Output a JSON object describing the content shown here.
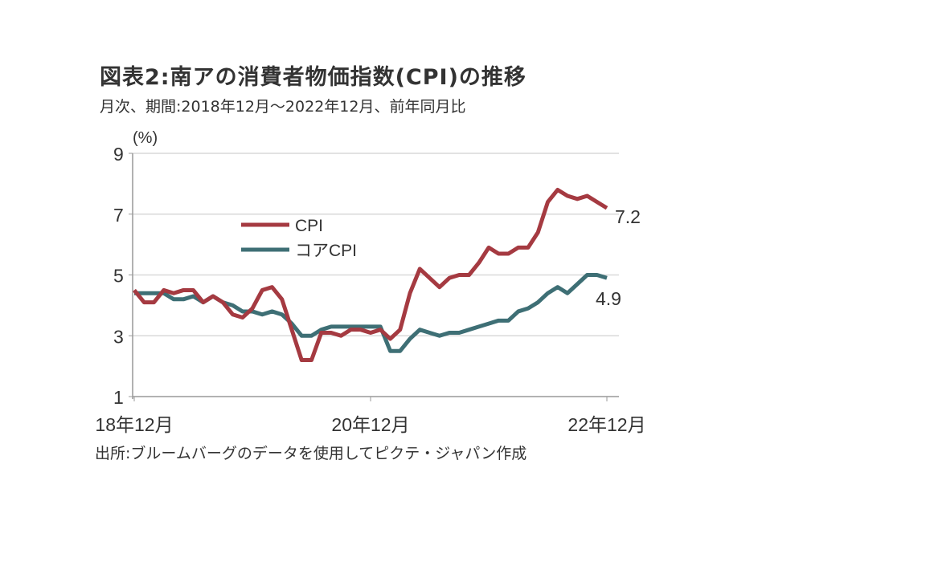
{
  "title": "図表2:南アの消費者物価指数(CPI)の推移",
  "subtitle": "月次、期間:2018年12月～2022年12月、前年同月比",
  "source": "出所:ブルームバーグのデータを使用してピクテ・ジャパン作成",
  "chart_data": {
    "type": "line",
    "ylabel": "(%)",
    "ylim": [
      1,
      9
    ],
    "yticks": [
      "1",
      "3",
      "5",
      "7",
      "9"
    ],
    "xticks": [
      "18年12月",
      "20年12月",
      "22年12月"
    ],
    "x_range": [
      "2018-12",
      "2022-12"
    ],
    "grid": true,
    "legend": "center-left",
    "series": [
      {
        "name": "CPI",
        "color": "#a53a41",
        "end_label": "7.2",
        "values": [
          4.5,
          4.1,
          4.1,
          4.5,
          4.4,
          4.5,
          4.5,
          4.1,
          4.3,
          4.1,
          3.7,
          3.6,
          3.9,
          4.5,
          4.6,
          4.2,
          3.2,
          2.2,
          2.2,
          3.1,
          3.1,
          3.0,
          3.2,
          3.2,
          3.1,
          3.2,
          2.9,
          3.2,
          4.4,
          5.2,
          4.9,
          4.6,
          4.9,
          5.0,
          5.0,
          5.4,
          5.9,
          5.7,
          5.7,
          5.9,
          5.9,
          6.4,
          7.4,
          7.8,
          7.6,
          7.5,
          7.6,
          7.4,
          7.2
        ]
      },
      {
        "name": "コアCPI",
        "color": "#3e6f75",
        "end_label": "4.9",
        "values": [
          4.4,
          4.4,
          4.4,
          4.4,
          4.2,
          4.2,
          4.3,
          4.1,
          4.3,
          4.1,
          4.0,
          3.8,
          3.8,
          3.7,
          3.8,
          3.7,
          3.4,
          3.0,
          3.0,
          3.2,
          3.3,
          3.3,
          3.3,
          3.3,
          3.3,
          3.3,
          2.5,
          2.5,
          2.9,
          3.2,
          3.1,
          3.0,
          3.1,
          3.1,
          3.2,
          3.3,
          3.4,
          3.5,
          3.5,
          3.8,
          3.9,
          4.1,
          4.4,
          4.6,
          4.4,
          4.7,
          5.0,
          5.0,
          4.9
        ]
      }
    ]
  }
}
